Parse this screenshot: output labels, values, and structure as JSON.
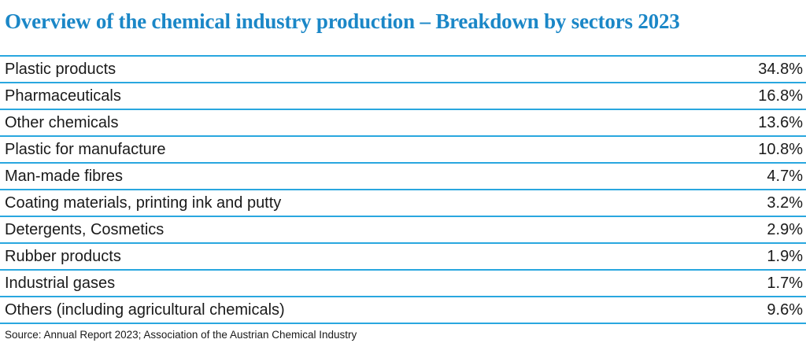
{
  "title": "Overview of the chemical industry production – Breakdown by sectors 2023",
  "source": "Source: Annual Report 2023; Association of the Austrian Chemical Industry",
  "colors": {
    "title_blue": "#1b87c7",
    "rule_blue": "#29a7df",
    "text": "#1a1a1a",
    "background": "#ffffff"
  },
  "table": {
    "rows": [
      {
        "label": "Plastic products",
        "value": "34.8%"
      },
      {
        "label": "Pharmaceuticals",
        "value": "16.8%"
      },
      {
        "label": "Other chemicals",
        "value": "13.6%"
      },
      {
        "label": "Plastic for manufacture",
        "value": "10.8%"
      },
      {
        "label": "Man-made fibres",
        "value": "4.7%"
      },
      {
        "label": "Coating materials, printing ink and putty",
        "value": "3.2%"
      },
      {
        "label": "Detergents, Cosmetics",
        "value": "2.9%"
      },
      {
        "label": "Rubber products",
        "value": "1.9%"
      },
      {
        "label": "Industrial gases",
        "value": "1.7%"
      },
      {
        "label": "Others (including agricultural chemicals)",
        "value": "9.6%"
      }
    ]
  },
  "chart_data": {
    "type": "table",
    "title": "Overview of the chemical industry production – Breakdown by sectors 2023",
    "categories": [
      "Plastic products",
      "Pharmaceuticals",
      "Other chemicals",
      "Plastic for manufacture",
      "Man-made fibres",
      "Coating materials, printing ink and putty",
      "Detergents, Cosmetics",
      "Rubber products",
      "Industrial gases",
      "Others (including agricultural chemicals)"
    ],
    "values": [
      34.8,
      16.8,
      13.6,
      10.8,
      4.7,
      3.2,
      2.9,
      1.9,
      1.7,
      9.6
    ],
    "unit": "%",
    "source": "Source: Annual Report 2023; Association of the Austrian Chemical Industry"
  }
}
